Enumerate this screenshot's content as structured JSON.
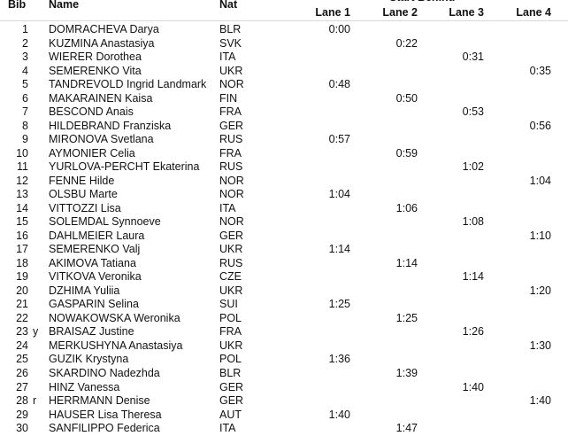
{
  "header": {
    "bib": "Bib",
    "name": "Name",
    "nat": "Nat",
    "group": "Start Behind",
    "lanes": [
      "Lane 1",
      "Lane 2",
      "Lane 3",
      "Lane 4"
    ]
  },
  "rows": [
    {
      "bib": 1,
      "name": "DOMRACHEVA Darya",
      "nat": "BLR",
      "times": [
        "0:00",
        null,
        null,
        null
      ]
    },
    {
      "bib": 2,
      "name": "KUZMINA Anastasiya",
      "nat": "SVK",
      "times": [
        null,
        "0:22",
        null,
        null
      ]
    },
    {
      "bib": 3,
      "name": "WIERER Dorothea",
      "nat": "ITA",
      "times": [
        null,
        null,
        "0:31",
        null
      ]
    },
    {
      "bib": 4,
      "name": "SEMERENKO Vita",
      "nat": "UKR",
      "times": [
        null,
        null,
        null,
        "0:35"
      ]
    },
    {
      "bib": 5,
      "name": "TANDREVOLD Ingrid Landmark",
      "nat": "NOR",
      "times": [
        "0:48",
        null,
        null,
        null
      ]
    },
    {
      "bib": 6,
      "name": "MAKARAINEN Kaisa",
      "nat": "FIN",
      "times": [
        null,
        "0:50",
        null,
        null
      ]
    },
    {
      "bib": 7,
      "name": "BESCOND Anais",
      "nat": "FRA",
      "times": [
        null,
        null,
        "0:53",
        null
      ]
    },
    {
      "bib": 8,
      "name": "HILDEBRAND Franziska",
      "nat": "GER",
      "times": [
        null,
        null,
        null,
        "0:56"
      ]
    },
    {
      "bib": 9,
      "name": "MIRONOVA Svetlana",
      "nat": "RUS",
      "times": [
        "0:57",
        null,
        null,
        null
      ]
    },
    {
      "bib": 10,
      "name": "AYMONIER Celia",
      "nat": "FRA",
      "times": [
        null,
        "0:59",
        null,
        null
      ]
    },
    {
      "bib": 11,
      "name": "YURLOVA-PERCHT Ekaterina",
      "nat": "RUS",
      "times": [
        null,
        null,
        "1:02",
        null
      ]
    },
    {
      "bib": 12,
      "name": "FENNE Hilde",
      "nat": "NOR",
      "times": [
        null,
        null,
        null,
        "1:04"
      ]
    },
    {
      "bib": 13,
      "name": "OLSBU Marte",
      "nat": "NOR",
      "times": [
        "1:04",
        null,
        null,
        null
      ]
    },
    {
      "bib": 14,
      "name": "VITTOZZI Lisa",
      "nat": "ITA",
      "times": [
        null,
        "1:06",
        null,
        null
      ]
    },
    {
      "bib": 15,
      "name": "SOLEMDAL Synnoeve",
      "nat": "NOR",
      "times": [
        null,
        null,
        "1:08",
        null
      ]
    },
    {
      "bib": 16,
      "name": "DAHLMEIER Laura",
      "nat": "GER",
      "times": [
        null,
        null,
        null,
        "1:10"
      ]
    },
    {
      "bib": 17,
      "name": "SEMERENKO Valj",
      "nat": "UKR",
      "times": [
        "1:14",
        null,
        null,
        null
      ]
    },
    {
      "bib": 18,
      "name": "AKIMOVA Tatiana",
      "nat": "RUS",
      "times": [
        null,
        "1:14",
        null,
        null
      ]
    },
    {
      "bib": 19,
      "name": "VITKOVA Veronika",
      "nat": "CZE",
      "times": [
        null,
        null,
        "1:14",
        null
      ]
    },
    {
      "bib": 20,
      "name": "DZHIMA Yuliia",
      "nat": "UKR",
      "times": [
        null,
        null,
        null,
        "1:20"
      ]
    },
    {
      "bib": 21,
      "name": "GASPARIN Selina",
      "nat": "SUI",
      "times": [
        "1:25",
        null,
        null,
        null
      ]
    },
    {
      "bib": 22,
      "name": "NOWAKOWSKA Weronika",
      "nat": "POL",
      "times": [
        null,
        "1:25",
        null,
        null
      ]
    },
    {
      "bib": 23,
      "flag": "y",
      "name": "BRAISAZ Justine",
      "nat": "FRA",
      "times": [
        null,
        null,
        "1:26",
        null
      ]
    },
    {
      "bib": 24,
      "name": "MERKUSHYNA Anastasiya",
      "nat": "UKR",
      "times": [
        null,
        null,
        null,
        "1:30"
      ]
    },
    {
      "bib": 25,
      "name": "GUZIK Krystyna",
      "nat": "POL",
      "times": [
        "1:36",
        null,
        null,
        null
      ]
    },
    {
      "bib": 26,
      "name": "SKARDINO Nadezhda",
      "nat": "BLR",
      "times": [
        null,
        "1:39",
        null,
        null
      ]
    },
    {
      "bib": 27,
      "name": "HINZ Vanessa",
      "nat": "GER",
      "times": [
        null,
        null,
        "1:40",
        null
      ]
    },
    {
      "bib": 28,
      "flag": "r",
      "name": "HERRMANN Denise",
      "nat": "GER",
      "times": [
        null,
        null,
        null,
        "1:40"
      ]
    },
    {
      "bib": 29,
      "name": "HAUSER Lisa Theresa",
      "nat": "AUT",
      "times": [
        "1:40",
        null,
        null,
        null
      ]
    },
    {
      "bib": 30,
      "name": "SANFILIPPO Federica",
      "nat": "ITA",
      "times": [
        null,
        "1:47",
        null,
        null
      ]
    }
  ]
}
